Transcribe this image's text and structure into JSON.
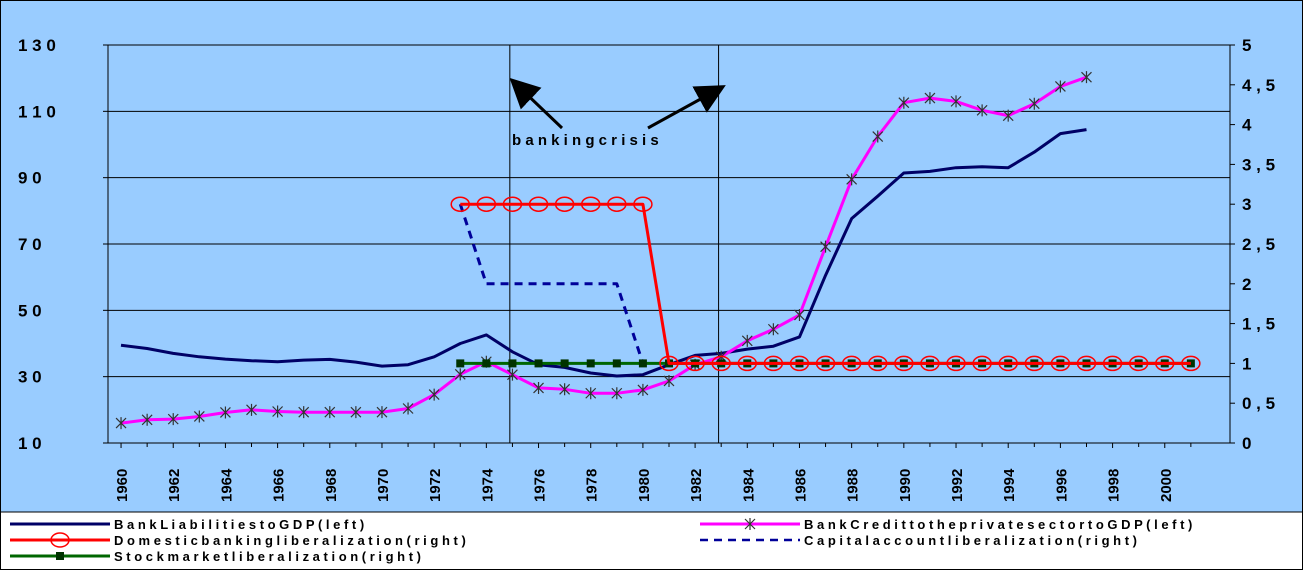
{
  "chart_data": {
    "type": "line",
    "title": "",
    "xlabel": "",
    "ylabel": "",
    "ylim_left": [
      10,
      130
    ],
    "ylim_right": [
      0,
      5
    ],
    "y_ticks_left": [
      "1 0",
      "3 0",
      "5 0",
      "7 0",
      "9 0",
      "1 1 0",
      "1 3 0"
    ],
    "y_ticks_right": [
      "0",
      "0 , 5",
      "1",
      "1 , 5",
      "2",
      "2 , 5",
      "3",
      "3 , 5",
      "4",
      "4 , 5",
      "5"
    ],
    "x_ticks": [
      "1960",
      "1962",
      "1964",
      "1966",
      "1968",
      "1970",
      "1972",
      "1974",
      "1976",
      "1978",
      "1980",
      "1982",
      "1984",
      "1986",
      "1988",
      "1990",
      "1992",
      "1994",
      "1996",
      "1998",
      "2000"
    ],
    "x_range": [
      1959.5,
      2002.5
    ],
    "annotation": {
      "text": "b a n k i n g   c r i s i s",
      "lines_at": [
        1974.9,
        1982.9
      ]
    },
    "series": [
      {
        "name": "B a n k   L i a b i l i t i e s   t o   G D P  ( l e f t )",
        "axis": "left",
        "color": "#000066",
        "marker": "none",
        "dash": "solid",
        "x": [
          1960,
          1961,
          1962,
          1963,
          1964,
          1965,
          1966,
          1967,
          1968,
          1969,
          1970,
          1971,
          1972,
          1973,
          1974,
          1975,
          1976,
          1977,
          1978,
          1979,
          1980,
          1981,
          1982,
          1983,
          1984,
          1985,
          1986,
          1987,
          1988,
          1989,
          1990,
          1991,
          1992,
          1993,
          1994,
          1995,
          1996,
          1997
        ],
        "y": [
          39.5,
          38.5,
          37,
          36,
          35.3,
          34.8,
          34.5,
          35,
          35.2,
          34.4,
          33.2,
          33.6,
          36,
          40,
          42.6,
          37.5,
          33.6,
          32.8,
          31.1,
          30.2,
          30.6,
          33.6,
          36.4,
          37,
          38.3,
          39.2,
          42,
          60.6,
          77.7,
          84.4,
          91.4,
          91.9,
          93,
          93.3,
          93,
          97.7,
          103.3,
          104.5
        ]
      },
      {
        "name": "B a n k   C r e d i t   t o   t h e   p r i v a t e   s e c t o r   t o   G D P  ( l e f t )",
        "axis": "left",
        "color": "#ff00ff",
        "marker": "star",
        "dash": "solid",
        "x": [
          1960,
          1961,
          1962,
          1963,
          1964,
          1965,
          1966,
          1967,
          1968,
          1969,
          1970,
          1971,
          1972,
          1973,
          1974,
          1975,
          1976,
          1977,
          1978,
          1979,
          1980,
          1981,
          1982,
          1983,
          1984,
          1985,
          1986,
          1987,
          1988,
          1989,
          1990,
          1991,
          1992,
          1993,
          1994,
          1995,
          1996,
          1997
        ],
        "y": [
          16,
          17,
          17.2,
          18,
          19.2,
          20,
          19.5,
          19.3,
          19.3,
          19.3,
          19.3,
          20.4,
          24.6,
          30.7,
          34.5,
          30.6,
          26.6,
          26.2,
          25,
          25,
          26,
          28.7,
          33.6,
          36,
          40.8,
          44.3,
          48.6,
          69.2,
          89.5,
          102.4,
          112.6,
          114,
          113,
          110.3,
          108.7,
          112.3,
          117.5,
          120.3
        ]
      },
      {
        "name": "D o m e s t i c   b a n k i n g   l i b e r a l i z a t i o n  ( r i g h t )",
        "axis": "right",
        "color": "#ff0000",
        "marker": "circle",
        "dash": "solid",
        "x": [
          1973,
          1974,
          1975,
          1976,
          1977,
          1978,
          1979,
          1980,
          1981,
          1982,
          1983,
          1984,
          1985,
          1986,
          1987,
          1988,
          1989,
          1990,
          1991,
          1992,
          1993,
          1994,
          1995,
          1996,
          1997,
          1998,
          1999,
          2000,
          2001
        ],
        "y": [
          3,
          3,
          3,
          3,
          3,
          3,
          3,
          3,
          1,
          1,
          1,
          1,
          1,
          1,
          1,
          1,
          1,
          1,
          1,
          1,
          1,
          1,
          1,
          1,
          1,
          1,
          1,
          1,
          1
        ]
      },
      {
        "name": "C a p i t a l   a c c o u n t   l i b e r a l i z a t i o n  ( r i g h t )",
        "axis": "right",
        "color": "#000099",
        "marker": "none",
        "dash": "dashed",
        "x": [
          1973,
          1974,
          1975,
          1976,
          1977,
          1978,
          1979,
          1980
        ],
        "y": [
          3,
          2,
          2,
          2,
          2,
          2,
          2,
          1
        ]
      },
      {
        "name": "S t o c k   m a r k e t   l i b e r a l i z a t i o n  ( r i g h t )",
        "axis": "right",
        "color": "#006600",
        "marker": "square",
        "dash": "solid",
        "x": [
          1973,
          1974,
          1975,
          1976,
          1977,
          1978,
          1979,
          1980,
          1981,
          1982,
          1983,
          1984,
          1985,
          1986,
          1987,
          1988,
          1989,
          1990,
          1991,
          1992,
          1993,
          1994,
          1995,
          1996,
          1997,
          1998,
          1999,
          2000,
          2001
        ],
        "y": [
          1,
          1,
          1,
          1,
          1,
          1,
          1,
          1,
          1,
          1,
          1,
          1,
          1,
          1,
          1,
          1,
          1,
          1,
          1,
          1,
          1,
          1,
          1,
          1,
          1,
          1,
          1,
          1,
          1
        ]
      }
    ],
    "legend_position": "bottom",
    "grid": true,
    "colors": {
      "background": "#99ccff",
      "grid": "#000000"
    }
  }
}
